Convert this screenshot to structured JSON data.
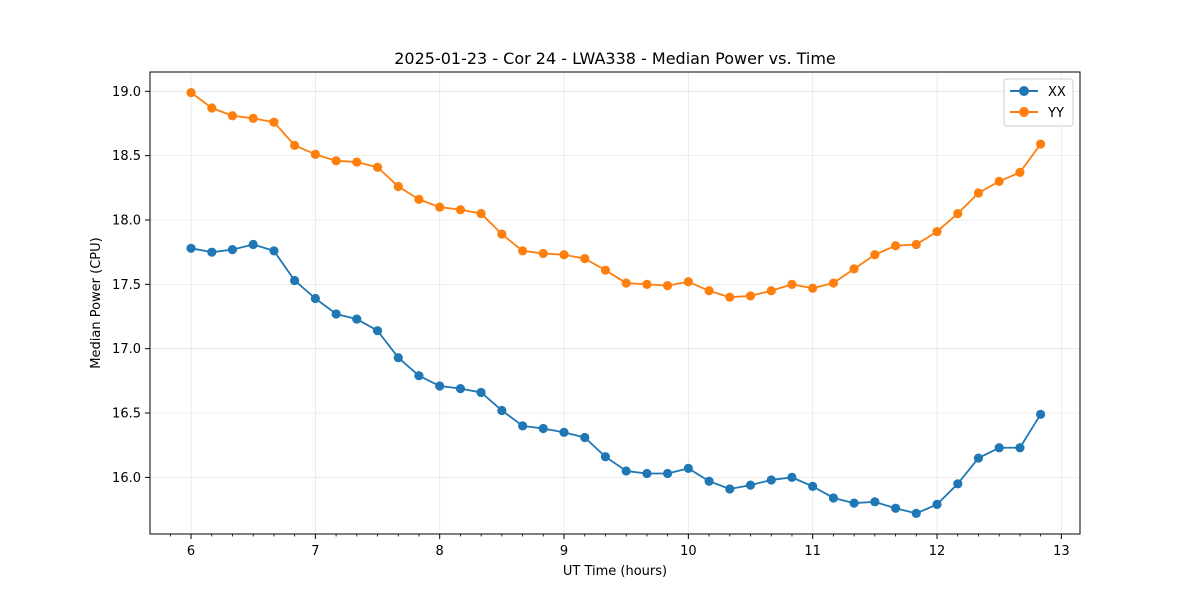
{
  "chart_data": {
    "type": "line",
    "title": "2025-01-23 - Cor 24 - LWA338 - Median Power vs. Time",
    "xlabel": "UT Time (hours)",
    "ylabel": "Median Power (CPU)",
    "xlim": [
      5.67,
      13.15
    ],
    "ylim": [
      15.56,
      19.15
    ],
    "xticks": [
      6,
      7,
      8,
      9,
      10,
      11,
      12,
      13
    ],
    "xtick_labels": [
      "6",
      "7",
      "8",
      "9",
      "10",
      "11",
      "12",
      "13"
    ],
    "yticks": [
      16.0,
      16.5,
      17.0,
      17.5,
      18.0,
      18.5,
      19.0
    ],
    "ytick_labels": [
      "16.0",
      "16.5",
      "17.0",
      "17.5",
      "18.0",
      "18.5",
      "19.0"
    ],
    "grid": true,
    "legend_position": "top-right",
    "x": [
      6.0,
      6.167,
      6.333,
      6.5,
      6.667,
      6.833,
      7.0,
      7.167,
      7.333,
      7.5,
      7.667,
      7.833,
      8.0,
      8.167,
      8.333,
      8.5,
      8.667,
      8.833,
      9.0,
      9.167,
      9.333,
      9.5,
      9.667,
      9.833,
      10.0,
      10.167,
      10.333,
      10.5,
      10.667,
      10.833,
      11.0,
      11.167,
      11.333,
      11.5,
      11.667,
      11.833,
      12.0,
      12.167,
      12.333,
      12.5,
      12.667,
      12.833
    ],
    "series": [
      {
        "name": "XX",
        "color": "#1f77b4",
        "values": [
          17.78,
          17.75,
          17.77,
          17.81,
          17.76,
          17.53,
          17.39,
          17.27,
          17.23,
          17.14,
          16.93,
          16.79,
          16.71,
          16.69,
          16.66,
          16.52,
          16.4,
          16.38,
          16.35,
          16.31,
          16.16,
          16.05,
          16.03,
          16.03,
          16.07,
          15.97,
          15.91,
          15.94,
          15.98,
          16.0,
          15.93,
          15.84,
          15.8,
          15.81,
          15.76,
          15.72,
          15.79,
          15.95,
          16.15,
          16.23,
          16.23,
          16.49
        ]
      },
      {
        "name": "YY",
        "color": "#ff7f0e",
        "values": [
          18.99,
          18.87,
          18.81,
          18.79,
          18.76,
          18.58,
          18.51,
          18.46,
          18.45,
          18.41,
          18.26,
          18.16,
          18.1,
          18.08,
          18.05,
          17.89,
          17.76,
          17.74,
          17.73,
          17.7,
          17.61,
          17.51,
          17.5,
          17.49,
          17.52,
          17.45,
          17.4,
          17.41,
          17.45,
          17.5,
          17.47,
          17.51,
          17.62,
          17.73,
          17.8,
          17.81,
          17.91,
          18.05,
          18.21,
          18.3,
          18.37,
          18.59
        ]
      }
    ]
  }
}
